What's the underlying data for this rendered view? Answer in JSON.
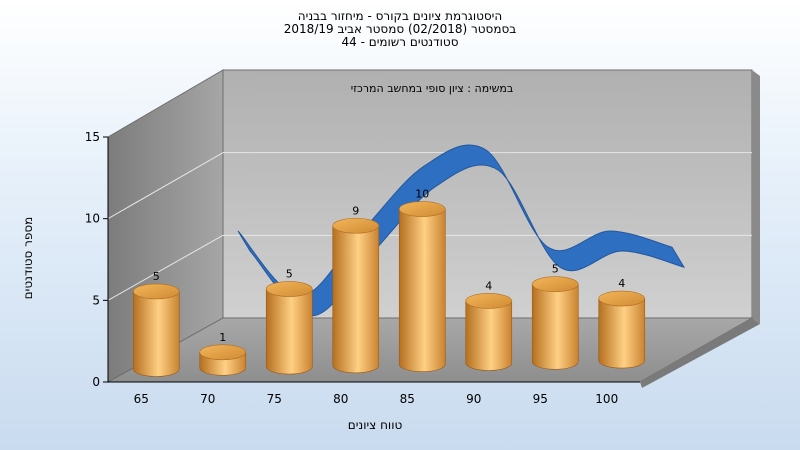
{
  "titles": {
    "line1": "היסטוגרמת ציונים בקורס - מיחזור בבניה",
    "line2": "בסמסטר  (02/2018)  סמסטר אביב 2018/19",
    "line3": "סטודנטים רשומים - 44"
  },
  "chart_data": {
    "type": "bar",
    "subtitle": "במשימה : ציון סופי במחשב המרכזי",
    "xlabel": "טווח ציונים",
    "ylabel": "מספר סטודנטים",
    "categories": [
      "65",
      "70",
      "75",
      "80",
      "85",
      "90",
      "95",
      "100"
    ],
    "values": [
      5,
      1,
      5,
      9,
      10,
      4,
      5,
      4
    ],
    "ylim": [
      0,
      15
    ],
    "yticks": [
      0,
      5,
      10,
      15
    ],
    "grid": true,
    "has_trend_curve": true,
    "colors": {
      "bar": "#e8a342",
      "curve": "#2f6fc1",
      "wall": "#bdbdbd"
    }
  }
}
